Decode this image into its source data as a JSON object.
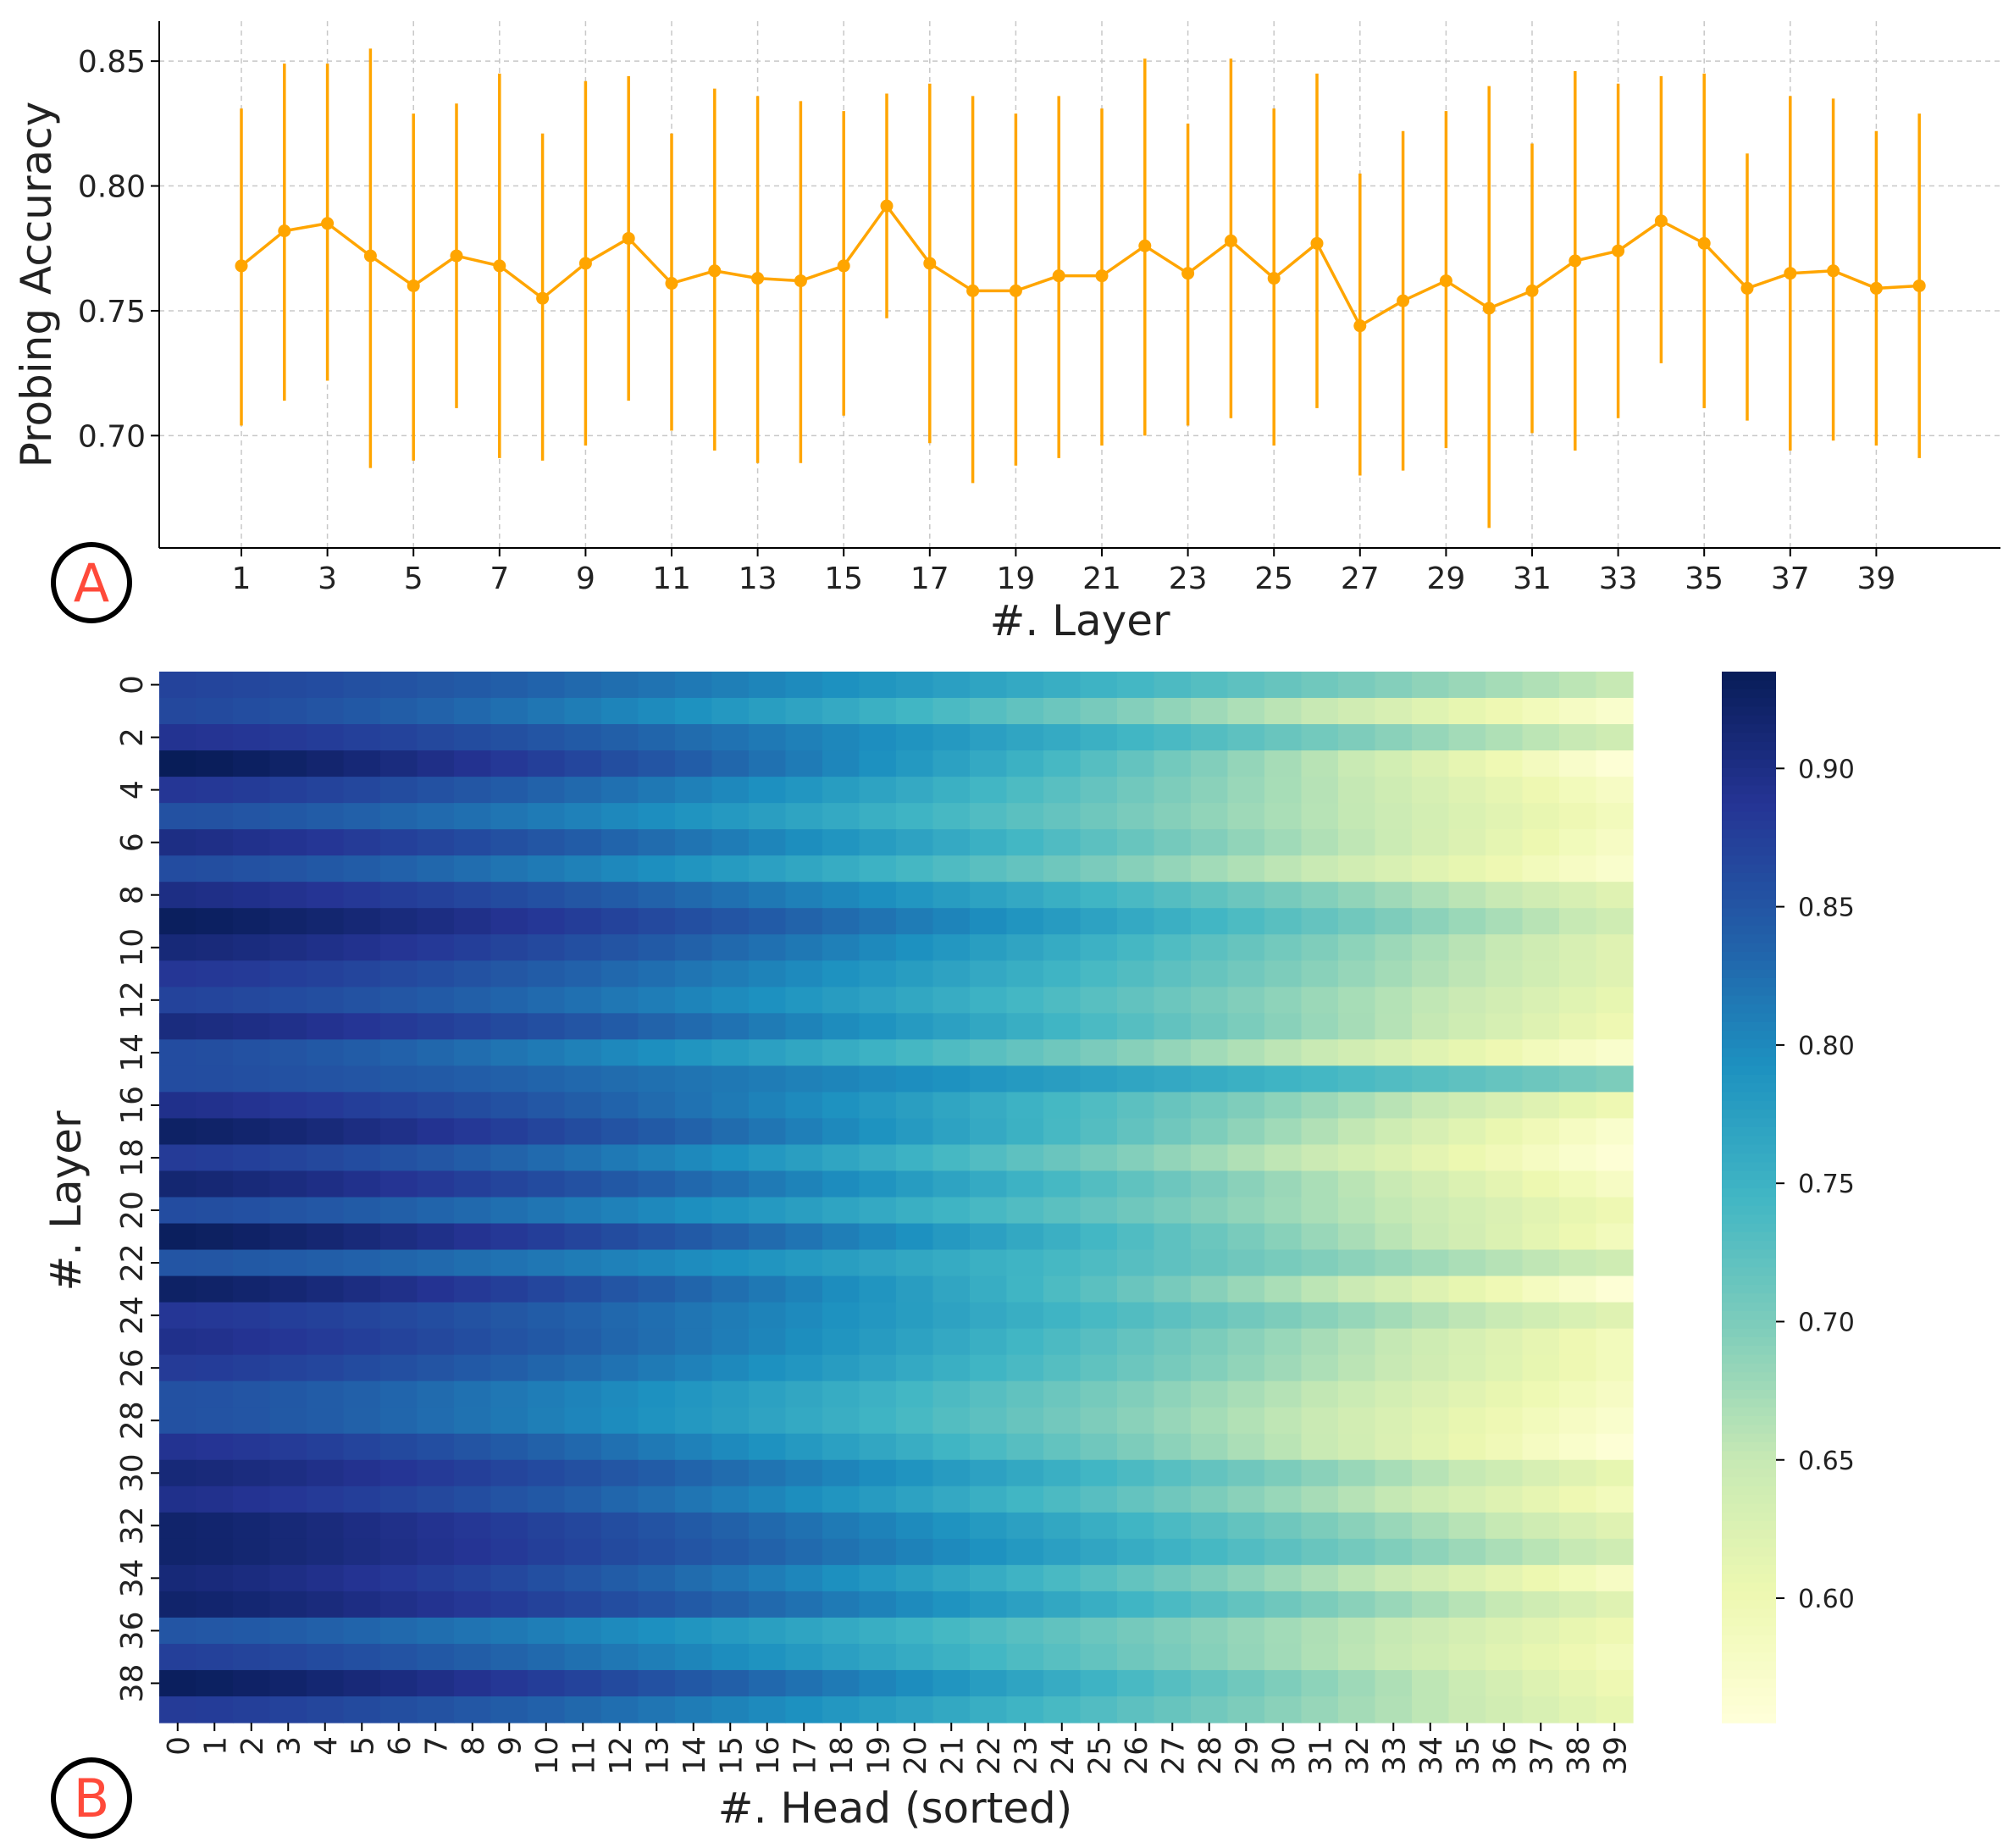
{
  "chart_data": [
    {
      "panel": "A",
      "type": "line",
      "xlabel": "#. Layer",
      "ylabel": "Probing Accuracy",
      "x": [
        1,
        2,
        3,
        4,
        5,
        6,
        7,
        8,
        9,
        10,
        11,
        12,
        13,
        14,
        15,
        16,
        17,
        18,
        19,
        20,
        21,
        22,
        23,
        24,
        25,
        26,
        27,
        28,
        29,
        30,
        31,
        32,
        33,
        34,
        35,
        36,
        37,
        38,
        39,
        40
      ],
      "x_tick_labels": [
        "1",
        "3",
        "5",
        "7",
        "9",
        "11",
        "13",
        "15",
        "17",
        "19",
        "21",
        "23",
        "25",
        "27",
        "29",
        "31",
        "33",
        "35",
        "37",
        "39"
      ],
      "series": [
        {
          "mean": [
            0.768,
            0.782,
            0.785,
            0.772,
            0.76,
            0.772,
            0.768,
            0.755,
            0.769,
            0.779,
            0.761,
            0.766,
            0.763,
            0.762,
            0.768,
            0.792,
            0.769,
            0.758,
            0.758,
            0.764,
            0.764,
            0.776,
            0.765,
            0.778,
            0.763,
            0.777,
            0.744,
            0.754,
            0.762,
            0.751,
            0.758,
            0.77,
            0.774,
            0.786,
            0.777,
            0.759,
            0.765,
            0.766,
            0.759,
            0.76
          ],
          "err_low": [
            0.704,
            0.714,
            0.722,
            0.687,
            0.69,
            0.711,
            0.691,
            0.69,
            0.696,
            0.714,
            0.702,
            0.694,
            0.689,
            0.689,
            0.708,
            0.747,
            0.697,
            0.681,
            0.688,
            0.691,
            0.696,
            0.7,
            0.704,
            0.707,
            0.696,
            0.711,
            0.684,
            0.686,
            0.695,
            0.663,
            0.701,
            0.694,
            0.707,
            0.729,
            0.711,
            0.706,
            0.694,
            0.698,
            0.696,
            0.691
          ],
          "err_high": [
            0.831,
            0.849,
            0.849,
            0.855,
            0.829,
            0.833,
            0.845,
            0.821,
            0.842,
            0.844,
            0.821,
            0.839,
            0.836,
            0.834,
            0.83,
            0.837,
            0.841,
            0.836,
            0.829,
            0.836,
            0.831,
            0.851,
            0.825,
            0.851,
            0.831,
            0.845,
            0.805,
            0.822,
            0.83,
            0.84,
            0.817,
            0.846,
            0.841,
            0.844,
            0.845,
            0.813,
            0.836,
            0.835,
            0.822,
            0.829
          ]
        }
      ],
      "ylim": [
        0.655,
        0.866
      ],
      "yticks": [
        "0.70",
        "0.75",
        "0.80",
        "0.85"
      ],
      "grid": true,
      "color": "#FFA500"
    },
    {
      "panel": "B",
      "type": "heatmap",
      "xlabel": "#. Head (sorted)",
      "ylabel": "#. Layer",
      "x_tick_labels": [
        "0",
        "1",
        "2",
        "3",
        "4",
        "5",
        "6",
        "7",
        "8",
        "9",
        "10",
        "11",
        "12",
        "13",
        "14",
        "15",
        "16",
        "17",
        "18",
        "19",
        "20",
        "21",
        "22",
        "23",
        "24",
        "25",
        "26",
        "27",
        "28",
        "29",
        "30",
        "31",
        "32",
        "33",
        "34",
        "35",
        "36",
        "37",
        "38",
        "39"
      ],
      "y_tick_labels": [
        "0",
        "2",
        "4",
        "6",
        "8",
        "10",
        "12",
        "14",
        "16",
        "18",
        "20",
        "22",
        "24",
        "26",
        "28",
        "30",
        "32",
        "34",
        "36",
        "38"
      ],
      "rows": 40,
      "cols": 40,
      "row_max": [
        0.87,
        0.865,
        0.89,
        0.935,
        0.885,
        0.855,
        0.9,
        0.86,
        0.9,
        0.93,
        0.91,
        0.885,
        0.87,
        0.905,
        0.86,
        0.86,
        0.895,
        0.925,
        0.88,
        0.915,
        0.86,
        0.93,
        0.85,
        0.925,
        0.885,
        0.895,
        0.88,
        0.855,
        0.855,
        0.89,
        0.91,
        0.895,
        0.92,
        0.92,
        0.91,
        0.92,
        0.85,
        0.875,
        0.93,
        0.88
      ],
      "row_min": [
        0.65,
        0.57,
        0.64,
        0.56,
        0.58,
        0.59,
        0.58,
        0.57,
        0.62,
        0.64,
        0.62,
        0.62,
        0.61,
        0.6,
        0.57,
        0.7,
        0.6,
        0.57,
        0.56,
        0.58,
        0.6,
        0.59,
        0.64,
        0.56,
        0.62,
        0.59,
        0.59,
        0.58,
        0.57,
        0.56,
        0.61,
        0.59,
        0.62,
        0.64,
        0.58,
        0.62,
        0.6,
        0.59,
        0.6,
        0.61
      ],
      "colorbar": {
        "min": 0.555,
        "max": 0.935,
        "ticks": [
          "0.60",
          "0.65",
          "0.70",
          "0.75",
          "0.80",
          "0.85",
          "0.90"
        ],
        "colormap": "YlGnBu"
      }
    }
  ],
  "panel_labels": [
    "A",
    "B"
  ],
  "colors": {
    "line": "#FFA500",
    "panel_label": "#ff4a3a",
    "grid": "#c8c8c8"
  }
}
